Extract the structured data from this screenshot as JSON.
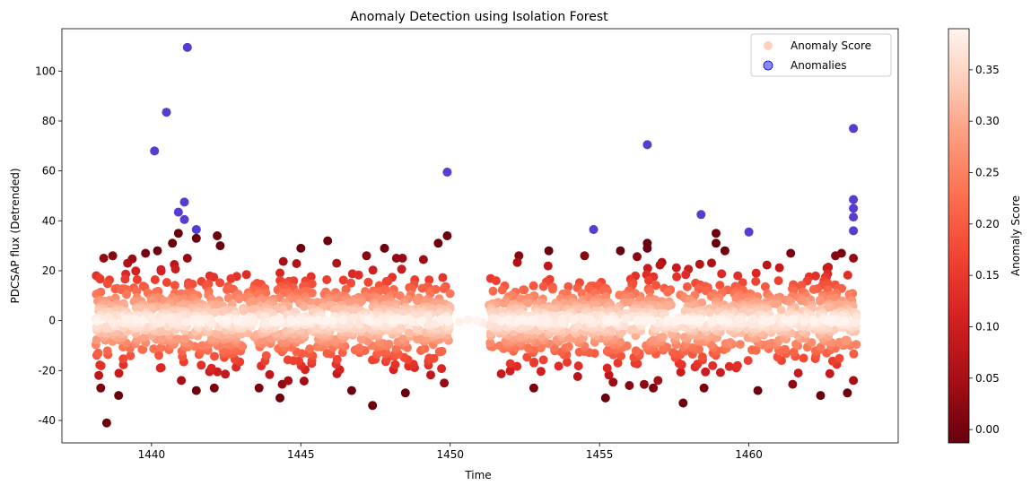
{
  "chart_data": {
    "type": "scatter",
    "title": "Anomaly Detection using Isolation Forest",
    "xlabel": "Time",
    "ylabel": "PDCSAP flux (Detrended)",
    "xlim": [
      1437.0,
      1465.0
    ],
    "ylim": [
      -49,
      117
    ],
    "x_ticks": [
      1440,
      1445,
      1450,
      1455,
      1460
    ],
    "y_ticks": [
      -40,
      -20,
      0,
      20,
      40,
      60,
      80,
      100
    ],
    "grid": false,
    "legend_position": "upper-right",
    "colorbar": {
      "label": "Anomaly Score",
      "colormap": "Reds_r",
      "range": [
        -0.013,
        0.39
      ],
      "ticks": [
        "0.00",
        "0.05",
        "0.10",
        "0.15",
        "0.20",
        "0.25",
        "0.30",
        "0.35"
      ],
      "tick_values": [
        0.0,
        0.05,
        0.1,
        0.15,
        0.2,
        0.25,
        0.3,
        0.35
      ]
    },
    "data_segments": [
      {
        "x_start": 1438.1,
        "x_end": 1450.0
      },
      {
        "x_start": 1451.3,
        "x_end": 1463.6
      }
    ],
    "series": [
      {
        "name": "Anomaly Score",
        "color_scale": "Reds_r",
        "note_points": "dense band of observations colored by anomaly score; sampled representative points",
        "outliers": [
          {
            "x": 1438.3,
            "y": -27
          },
          {
            "x": 1438.5,
            "y": -41
          },
          {
            "x": 1438.9,
            "y": -30
          },
          {
            "x": 1438.4,
            "y": 25
          },
          {
            "x": 1438.7,
            "y": 26
          },
          {
            "x": 1439.2,
            "y": 23
          },
          {
            "x": 1439.8,
            "y": 27
          },
          {
            "x": 1440.2,
            "y": 28
          },
          {
            "x": 1440.7,
            "y": 31
          },
          {
            "x": 1440.9,
            "y": 35
          },
          {
            "x": 1441.2,
            "y": 25
          },
          {
            "x": 1441.5,
            "y": 33
          },
          {
            "x": 1442.2,
            "y": 34
          },
          {
            "x": 1442.3,
            "y": 30
          },
          {
            "x": 1441.0,
            "y": -24
          },
          {
            "x": 1441.5,
            "y": -28
          },
          {
            "x": 1442.1,
            "y": -27
          },
          {
            "x": 1443.6,
            "y": -27
          },
          {
            "x": 1444.3,
            "y": -31
          },
          {
            "x": 1445.0,
            "y": 29
          },
          {
            "x": 1445.9,
            "y": 32
          },
          {
            "x": 1446.2,
            "y": 23
          },
          {
            "x": 1446.7,
            "y": -28
          },
          {
            "x": 1447.2,
            "y": 26
          },
          {
            "x": 1447.4,
            "y": -34
          },
          {
            "x": 1447.8,
            "y": 29
          },
          {
            "x": 1448.2,
            "y": 25
          },
          {
            "x": 1448.4,
            "y": 25
          },
          {
            "x": 1448.5,
            "y": -29
          },
          {
            "x": 1449.6,
            "y": 31
          },
          {
            "x": 1449.9,
            "y": 34
          },
          {
            "x": 1449.8,
            "y": -25
          },
          {
            "x": 1452.3,
            "y": 26
          },
          {
            "x": 1452.8,
            "y": -27
          },
          {
            "x": 1453.3,
            "y": 28
          },
          {
            "x": 1454.5,
            "y": 26
          },
          {
            "x": 1455.2,
            "y": -31
          },
          {
            "x": 1455.7,
            "y": 28
          },
          {
            "x": 1456.0,
            "y": -26
          },
          {
            "x": 1456.6,
            "y": 31
          },
          {
            "x": 1456.6,
            "y": 29
          },
          {
            "x": 1456.8,
            "y": -27
          },
          {
            "x": 1457.8,
            "y": -33
          },
          {
            "x": 1458.5,
            "y": -27
          },
          {
            "x": 1458.9,
            "y": 35
          },
          {
            "x": 1458.9,
            "y": 31
          },
          {
            "x": 1459.2,
            "y": 28
          },
          {
            "x": 1460.3,
            "y": -28
          },
          {
            "x": 1461.4,
            "y": 27
          },
          {
            "x": 1462.4,
            "y": -30
          },
          {
            "x": 1462.9,
            "y": 26
          },
          {
            "x": 1463.1,
            "y": 27
          },
          {
            "x": 1463.3,
            "y": -29
          },
          {
            "x": 1463.5,
            "y": -24
          },
          {
            "x": 1463.5,
            "y": 25
          }
        ]
      },
      {
        "name": "Anomalies",
        "color": "#2a00a8",
        "points": [
          {
            "x": 1440.1,
            "y": 68
          },
          {
            "x": 1440.5,
            "y": 83.5
          },
          {
            "x": 1440.9,
            "y": 43.5
          },
          {
            "x": 1441.1,
            "y": 47.5
          },
          {
            "x": 1441.1,
            "y": 40.5
          },
          {
            "x": 1441.2,
            "y": 109.5
          },
          {
            "x": 1441.5,
            "y": 36.5
          },
          {
            "x": 1449.9,
            "y": 59.5
          },
          {
            "x": 1454.8,
            "y": 36.5
          },
          {
            "x": 1456.6,
            "y": 70.5
          },
          {
            "x": 1458.4,
            "y": 42.5
          },
          {
            "x": 1460.0,
            "y": 35.5
          },
          {
            "x": 1463.5,
            "y": 77
          },
          {
            "x": 1463.5,
            "y": 48.5
          },
          {
            "x": 1463.5,
            "y": 45
          },
          {
            "x": 1463.5,
            "y": 41.5
          },
          {
            "x": 1463.5,
            "y": 36
          }
        ]
      }
    ]
  }
}
